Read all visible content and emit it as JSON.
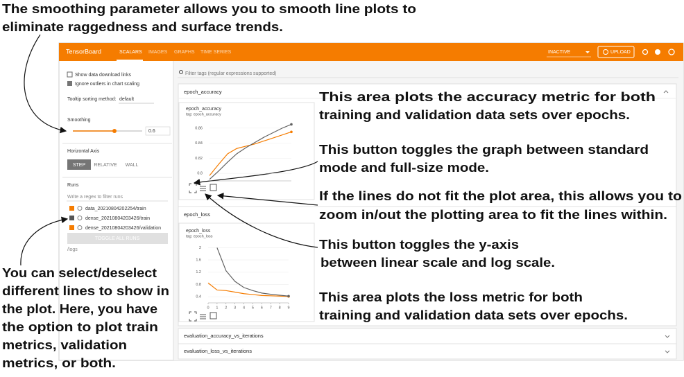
{
  "annotations": {
    "smoothing": [
      "The smoothing parameter allows you to smooth line plots to",
      "eliminate raggedness and surface trends."
    ],
    "accuracy_area": [
      "This area plots the accuracy metric for both",
      "training and validation data sets over epochs."
    ],
    "fullsize": [
      "This button toggles the graph between standard",
      "mode and full-size mode."
    ],
    "zoom": [
      "If the lines do not fit the plot area, this allows you to",
      "zoom in/out the plotting area to fit the lines within."
    ],
    "log_scale": [
      "This button toggles the y-axis",
      "between linear scale and log scale."
    ],
    "loss_area": [
      "This area plots the loss metric for both",
      "training and validation data sets over epochs."
    ],
    "runs": [
      "You can select/deselect",
      "different lines to show in",
      "the plot. Here, you have",
      "the option to plot train",
      "metrics, validation",
      "metrics, or both."
    ]
  },
  "header": {
    "brand": "TensorBoard",
    "tabs": [
      "SCALARS",
      "IMAGES",
      "GRAPHS",
      "TIME SERIES"
    ],
    "status": "INACTIVE",
    "upload": "UPLOAD"
  },
  "sidebar": {
    "checkboxes": [
      "Show data download links",
      "Ignore outliers in chart scaling"
    ],
    "tooltip_label": "Tooltip sorting method:",
    "tooltip_value": "default",
    "smoothing_label": "Smoothing",
    "smoothing_value": 0.6,
    "axis_label": "Horizontal Axis",
    "axis_options": [
      "STEP",
      "RELATIVE",
      "WALL"
    ],
    "runs_label": "Runs",
    "runs_filter": "Write a regex to filter runs",
    "runs": [
      "data_20210804202254/train",
      "dense_20210804203426/train",
      "dense_20210804203426/validation"
    ],
    "toggle": "TOGGLE ALL RUNS",
    "logdir": "/logs"
  },
  "main": {
    "filter": "Filter tags (regular expressions supported)",
    "sections": [
      "epoch_accuracy",
      "epoch_loss",
      "evaluation_accuracy_vs_iterations",
      "evaluation_loss_vs_iterations"
    ],
    "charts": [
      {
        "title": "epoch_accuracy",
        "tag": "tag: epoch_accuracy",
        "x": [
          0,
          1,
          2,
          3,
          4,
          5,
          6,
          7,
          8,
          9
        ],
        "xlim": [
          0,
          9
        ],
        "ylim": [
          0.79,
          0.87
        ],
        "yticks": [
          0.8,
          0.82,
          0.84,
          0.86
        ],
        "series": [
          {
            "color": "#f57c00",
            "values": [
              0.797,
              0.812,
              0.826,
              0.833,
              0.836,
              0.839,
              0.843,
              0.847,
              0.851,
              0.855
            ]
          },
          {
            "color": "#616161",
            "values": [
              0.792,
              0.803,
              0.815,
              0.826,
              0.834,
              0.841,
              0.848,
              0.854,
              0.86,
              0.865
            ]
          }
        ]
      },
      {
        "title": "epoch_loss",
        "tag": "tag: epoch_loss",
        "x": [
          0,
          1,
          2,
          3,
          4,
          5,
          6,
          7,
          8,
          9
        ],
        "xlim": [
          0,
          9
        ],
        "xticks": [
          0,
          1,
          2,
          3,
          4,
          5,
          6,
          7,
          8,
          9
        ],
        "ylim": [
          0.2,
          2.1
        ],
        "yticks": [
          0.4,
          0.8,
          1.2,
          1.6,
          2
        ],
        "series": [
          {
            "color": "#f57c00",
            "values": [
              0.85,
              0.62,
              0.6,
              0.55,
              0.5,
              0.47,
              0.44,
              0.43,
              0.42,
              0.41
            ]
          },
          {
            "color": "#616161",
            "values": [
              null,
              2.0,
              1.25,
              0.9,
              0.7,
              0.6,
              0.52,
              0.48,
              0.45,
              0.42
            ]
          }
        ]
      }
    ]
  }
}
